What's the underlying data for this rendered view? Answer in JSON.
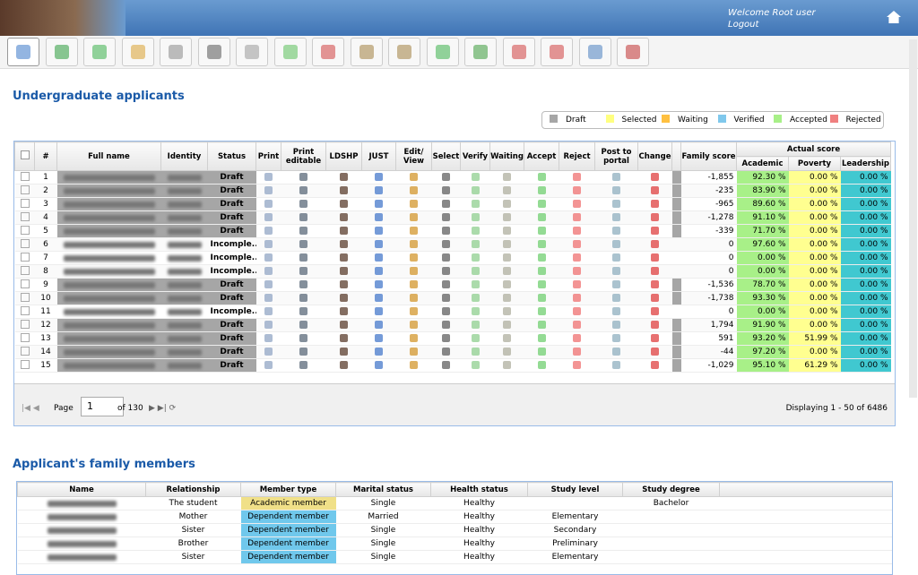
{
  "header": {
    "welcome": "Welcome Root user",
    "logout": "Logout"
  },
  "applicants": {
    "title": "Undergraduate applicants",
    "legend": [
      {
        "label": "Draft",
        "color": "#a6a6a6"
      },
      {
        "label": "Selected",
        "color": "#ffff80"
      },
      {
        "label": "Waiting",
        "color": "#ffc040"
      },
      {
        "label": "Verified",
        "color": "#80c8ec"
      },
      {
        "label": "Accepted",
        "color": "#a8f088"
      },
      {
        "label": "Rejected",
        "color": "#f08080"
      }
    ],
    "columns": [
      "#",
      "Full name",
      "Identity",
      "Status",
      "Print",
      "Print editable",
      "LDSHP",
      "JUST",
      "Edit/ View",
      "Select",
      "Verify",
      "Waiting",
      "Accept",
      "Reject",
      "Post to portal",
      "Change",
      "Family score"
    ],
    "score_group": "Actual score",
    "score_columns": [
      "Academic",
      "Poverty",
      "Leadership"
    ],
    "rows": [
      {
        "num": 1,
        "status": "Draft",
        "family_score": "-1,855",
        "scores": [
          "92.30 %",
          "0.00 %",
          "0.00 %"
        ]
      },
      {
        "num": 2,
        "status": "Draft",
        "family_score": "-235",
        "scores": [
          "83.90 %",
          "0.00 %",
          "0.00 %"
        ]
      },
      {
        "num": 3,
        "status": "Draft",
        "family_score": "-965",
        "scores": [
          "89.60 %",
          "0.00 %",
          "0.00 %"
        ]
      },
      {
        "num": 4,
        "status": "Draft",
        "family_score": "-1,278",
        "scores": [
          "91.10 %",
          "0.00 %",
          "0.00 %"
        ]
      },
      {
        "num": 5,
        "status": "Draft",
        "family_score": "-339",
        "scores": [
          "71.70 %",
          "0.00 %",
          "0.00 %"
        ]
      },
      {
        "num": 6,
        "status": "Incomple...",
        "family_score": "0",
        "scores": [
          "97.60 %",
          "0.00 %",
          "0.00 %"
        ]
      },
      {
        "num": 7,
        "status": "Incomple...",
        "family_score": "0",
        "scores": [
          "0.00 %",
          "0.00 %",
          "0.00 %"
        ]
      },
      {
        "num": 8,
        "status": "Incomple...",
        "family_score": "0",
        "scores": [
          "0.00 %",
          "0.00 %",
          "0.00 %"
        ]
      },
      {
        "num": 9,
        "status": "Draft",
        "family_score": "-1,536",
        "scores": [
          "78.70 %",
          "0.00 %",
          "0.00 %"
        ]
      },
      {
        "num": 10,
        "status": "Draft",
        "family_score": "-1,738",
        "scores": [
          "93.30 %",
          "0.00 %",
          "0.00 %"
        ]
      },
      {
        "num": 11,
        "status": "Incomple...",
        "family_score": "0",
        "scores": [
          "0.00 %",
          "0.00 %",
          "0.00 %"
        ]
      },
      {
        "num": 12,
        "status": "Draft",
        "family_score": "1,794",
        "scores": [
          "91.90 %",
          "0.00 %",
          "0.00 %"
        ]
      },
      {
        "num": 13,
        "status": "Draft",
        "family_score": "591",
        "scores": [
          "93.20 %",
          "51.99 %",
          "0.00 %"
        ]
      },
      {
        "num": 14,
        "status": "Draft",
        "family_score": "-44",
        "scores": [
          "97.20 %",
          "0.00 %",
          "0.00 %"
        ]
      },
      {
        "num": 15,
        "status": "Draft",
        "family_score": "-1,029",
        "scores": [
          "95.10 %",
          "61.29 %",
          "0.00 %"
        ]
      }
    ],
    "pager": {
      "page_label": "Page",
      "page": 1,
      "of": "of 130",
      "display": "Displaying 1 - 50 of 6486"
    }
  },
  "family": {
    "title": "Applicant's family members",
    "columns": [
      "Name",
      "Relationship",
      "Member type",
      "Marital status",
      "Health status",
      "Study level",
      "Study degree"
    ],
    "rows": [
      [
        null,
        "The student",
        "Academic member",
        "Single",
        "Healthy",
        null,
        "Bachelor"
      ],
      [
        null,
        "Mother",
        "Dependent member",
        "Married",
        "Healthy",
        "Elementary",
        null
      ],
      [
        null,
        "Sister",
        "Dependent member",
        "Single",
        "Healthy",
        "Secondary",
        null
      ],
      [
        null,
        "Brother",
        "Dependent member",
        "Single",
        "Healthy",
        "Preliminary",
        null
      ],
      [
        null,
        "Sister",
        "Dependent member",
        "Single",
        "Healthy",
        "Elementary",
        null
      ]
    ]
  }
}
